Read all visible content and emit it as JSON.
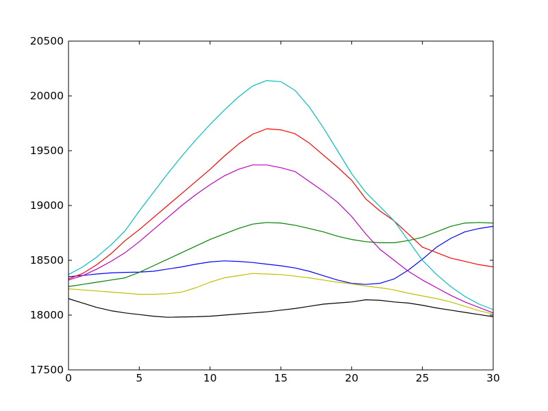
{
  "figure": {
    "background": "#ffffff",
    "frame_color": "#000000",
    "tick_font_size": 15.5
  },
  "chart_data": {
    "type": "line",
    "title": "",
    "xlabel": "",
    "ylabel": "",
    "grid": false,
    "legend": "none",
    "xlim": [
      0,
      30
    ],
    "ylim": [
      17500,
      20500
    ],
    "x_ticks": [
      0,
      5,
      10,
      15,
      20,
      25,
      30
    ],
    "y_ticks": [
      17500,
      18000,
      18500,
      19000,
      19500,
      20000,
      20500
    ],
    "x": [
      0,
      1,
      2,
      3,
      4,
      5,
      6,
      7,
      8,
      9,
      10,
      11,
      12,
      13,
      14,
      15,
      16,
      17,
      18,
      19,
      20,
      21,
      22,
      23,
      24,
      25,
      26,
      27,
      28,
      29,
      30
    ],
    "series": [
      {
        "name": "blue",
        "color": "#0000ff",
        "values": [
          18350,
          18362,
          18375,
          18385,
          18390,
          18392,
          18400,
          18420,
          18440,
          18465,
          18485,
          18495,
          18490,
          18480,
          18465,
          18450,
          18430,
          18400,
          18360,
          18320,
          18290,
          18280,
          18290,
          18330,
          18410,
          18510,
          18620,
          18700,
          18760,
          18790,
          18810
        ]
      },
      {
        "name": "green",
        "color": "#008000",
        "values": [
          18260,
          18280,
          18300,
          18320,
          18340,
          18390,
          18450,
          18510,
          18570,
          18630,
          18690,
          18740,
          18790,
          18830,
          18845,
          18840,
          18820,
          18790,
          18760,
          18720,
          18690,
          18670,
          18660,
          18660,
          18680,
          18710,
          18760,
          18810,
          18840,
          18845,
          18840
        ]
      },
      {
        "name": "red",
        "color": "#ff0000",
        "values": [
          18330,
          18380,
          18460,
          18560,
          18680,
          18780,
          18890,
          19000,
          19110,
          19220,
          19330,
          19450,
          19560,
          19650,
          19700,
          19690,
          19655,
          19570,
          19460,
          19350,
          19230,
          19060,
          18950,
          18860,
          18740,
          18620,
          18570,
          18520,
          18490,
          18460,
          18440
        ]
      },
      {
        "name": "cyan",
        "color": "#00bfbf",
        "values": [
          18370,
          18440,
          18530,
          18640,
          18770,
          18950,
          19120,
          19290,
          19450,
          19600,
          19740,
          19870,
          19990,
          20090,
          20140,
          20130,
          20050,
          19900,
          19710,
          19500,
          19290,
          19120,
          18990,
          18860,
          18680,
          18500,
          18370,
          18260,
          18170,
          18100,
          18050
        ]
      },
      {
        "name": "magenta",
        "color": "#bf00bf",
        "values": [
          18320,
          18360,
          18420,
          18490,
          18570,
          18670,
          18780,
          18890,
          19000,
          19100,
          19190,
          19270,
          19330,
          19370,
          19370,
          19345,
          19310,
          19220,
          19130,
          19030,
          18900,
          18740,
          18600,
          18500,
          18400,
          18320,
          18250,
          18180,
          18120,
          18070,
          18020
        ]
      },
      {
        "name": "yellow",
        "color": "#bfbf00",
        "values": [
          18240,
          18230,
          18220,
          18210,
          18200,
          18190,
          18190,
          18195,
          18210,
          18250,
          18300,
          18340,
          18360,
          18380,
          18375,
          18370,
          18355,
          18340,
          18320,
          18300,
          18285,
          18265,
          18250,
          18230,
          18200,
          18175,
          18150,
          18120,
          18080,
          18040,
          18010
        ]
      },
      {
        "name": "black",
        "color": "#000000",
        "values": [
          18150,
          18110,
          18070,
          18040,
          18020,
          18005,
          17990,
          17980,
          17983,
          17985,
          17990,
          18000,
          18010,
          18020,
          18030,
          18045,
          18060,
          18080,
          18100,
          18110,
          18120,
          18140,
          18135,
          18120,
          18110,
          18090,
          18065,
          18045,
          18025,
          18005,
          17985
        ]
      }
    ]
  },
  "plot_hints": {
    "tick_direction": "in",
    "ticks_on_all_sides": true,
    "line_width": 1.2
  }
}
